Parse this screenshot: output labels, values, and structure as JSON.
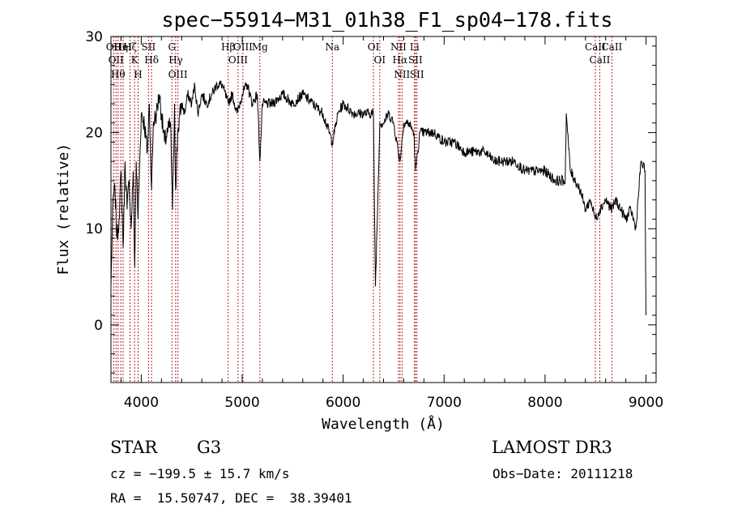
{
  "chart_data": {
    "type": "line",
    "title": "spec−55914−M31_01h38_F1_sp04−178.fits",
    "xlabel": "Wavelength (Å)",
    "ylabel": "Flux (relative)",
    "xlim": [
      3700,
      9100
    ],
    "ylim": [
      -6,
      30
    ],
    "xticks": [
      4000,
      5000,
      6000,
      7000,
      8000,
      9000
    ],
    "yticks": [
      0,
      10,
      20,
      30
    ],
    "grid": false,
    "series": [
      {
        "x": [
          3700,
          3720,
          3740,
          3760,
          3780,
          3800,
          3820,
          3840,
          3860,
          3880,
          3900,
          3920,
          3935,
          3950,
          3968,
          3985,
          4000,
          4030,
          4060,
          4080,
          4102,
          4120,
          4150,
          4180,
          4200,
          4230,
          4260,
          4290,
          4310,
          4330,
          4340,
          4360,
          4400,
          4430,
          4460,
          4500,
          4530,
          4560,
          4600,
          4650,
          4700,
          4750,
          4800,
          4861,
          4900,
          4950,
          5000,
          5050,
          5100,
          5150,
          5175,
          5200,
          5300,
          5400,
          5500,
          5600,
          5700,
          5800,
          5893,
          5950,
          6000,
          6100,
          6200,
          6300,
          6320,
          6363,
          6400,
          6450,
          6500,
          6563,
          6600,
          6650,
          6700,
          6717,
          6760,
          6800,
          6900,
          7000,
          7100,
          7200,
          7300,
          7400,
          7500,
          7600,
          7700,
          7800,
          7900,
          8000,
          8100,
          8150,
          8200,
          8210,
          8250,
          8300,
          8350,
          8400,
          8450,
          8498,
          8542,
          8600,
          8662,
          8700,
          8750,
          8800,
          8850,
          8900,
          8950,
          8990,
          9000
        ],
        "y": [
          4,
          13,
          14,
          9,
          11,
          16,
          8,
          17,
          12,
          15,
          10,
          16,
          6,
          17,
          11,
          17,
          22,
          21,
          18,
          23,
          14,
          21,
          22,
          24,
          22,
          19,
          20,
          21,
          12,
          23,
          14,
          20,
          23,
          22,
          24,
          23,
          25,
          22,
          24,
          23,
          24,
          25,
          25,
          23,
          24,
          22,
          24,
          25,
          23,
          24,
          17,
          23,
          23,
          24,
          23,
          24,
          23,
          22,
          19,
          22,
          23,
          22,
          22,
          22,
          4,
          21,
          21,
          22,
          21,
          17,
          21,
          21,
          20,
          16,
          20,
          20,
          20,
          19,
          19,
          18,
          18,
          18,
          17,
          17,
          17,
          16,
          16,
          16,
          15,
          15,
          15,
          22,
          16,
          15,
          14,
          12,
          13,
          11,
          12,
          13,
          12,
          13,
          12,
          11,
          12,
          10,
          17,
          16,
          1
        ]
      }
    ],
    "spectral_lines": [
      {
        "wavelength": 3727,
        "label": "OII"
      },
      {
        "wavelength": 3750,
        "label": "OII"
      },
      {
        "wavelength": 3770,
        "label": "Hθ"
      },
      {
        "wavelength": 3798,
        "label": "Hη"
      },
      {
        "wavelength": 3820,
        "label": "HeI"
      },
      {
        "wavelength": 3889,
        "label": "Hζ"
      },
      {
        "wavelength": 3934,
        "label": "K"
      },
      {
        "wavelength": 3969,
        "label": "H"
      },
      {
        "wavelength": 4072,
        "label": "SII"
      },
      {
        "wavelength": 4102,
        "label": "Hδ"
      },
      {
        "wavelength": 4304,
        "label": "G"
      },
      {
        "wavelength": 4341,
        "label": "Hγ"
      },
      {
        "wavelength": 4363,
        "label": "OIII"
      },
      {
        "wavelength": 4861,
        "label": "Hβ"
      },
      {
        "wavelength": 4959,
        "label": "OIII"
      },
      {
        "wavelength": 5007,
        "label": "OIII"
      },
      {
        "wavelength": 5175,
        "label": "Mg"
      },
      {
        "wavelength": 5893,
        "label": "Na"
      },
      {
        "wavelength": 6300,
        "label": "OI"
      },
      {
        "wavelength": 6363,
        "label": "OI"
      },
      {
        "wavelength": 6548,
        "label": "NII"
      },
      {
        "wavelength": 6563,
        "label": "Hα"
      },
      {
        "wavelength": 6583,
        "label": "NII"
      },
      {
        "wavelength": 6707,
        "label": "Li"
      },
      {
        "wavelength": 6716,
        "label": "SII"
      },
      {
        "wavelength": 6731,
        "label": "SII"
      },
      {
        "wavelength": 8498,
        "label": "CaII"
      },
      {
        "wavelength": 8542,
        "label": "CaII"
      },
      {
        "wavelength": 8662,
        "label": "CaII"
      }
    ],
    "colors": {
      "spectrum": "#000000",
      "lines": "#b22222",
      "axes": "#000000"
    }
  },
  "info": {
    "class_label": "STAR",
    "subclass": "G3",
    "redshift_text": "cz = −199.5 ± 15.7 km/s",
    "coords_text": "RA =  15.50747, DEC =  38.39401",
    "survey": "LAMOST DR3",
    "obs_date": "Obs−Date: 20111218"
  }
}
